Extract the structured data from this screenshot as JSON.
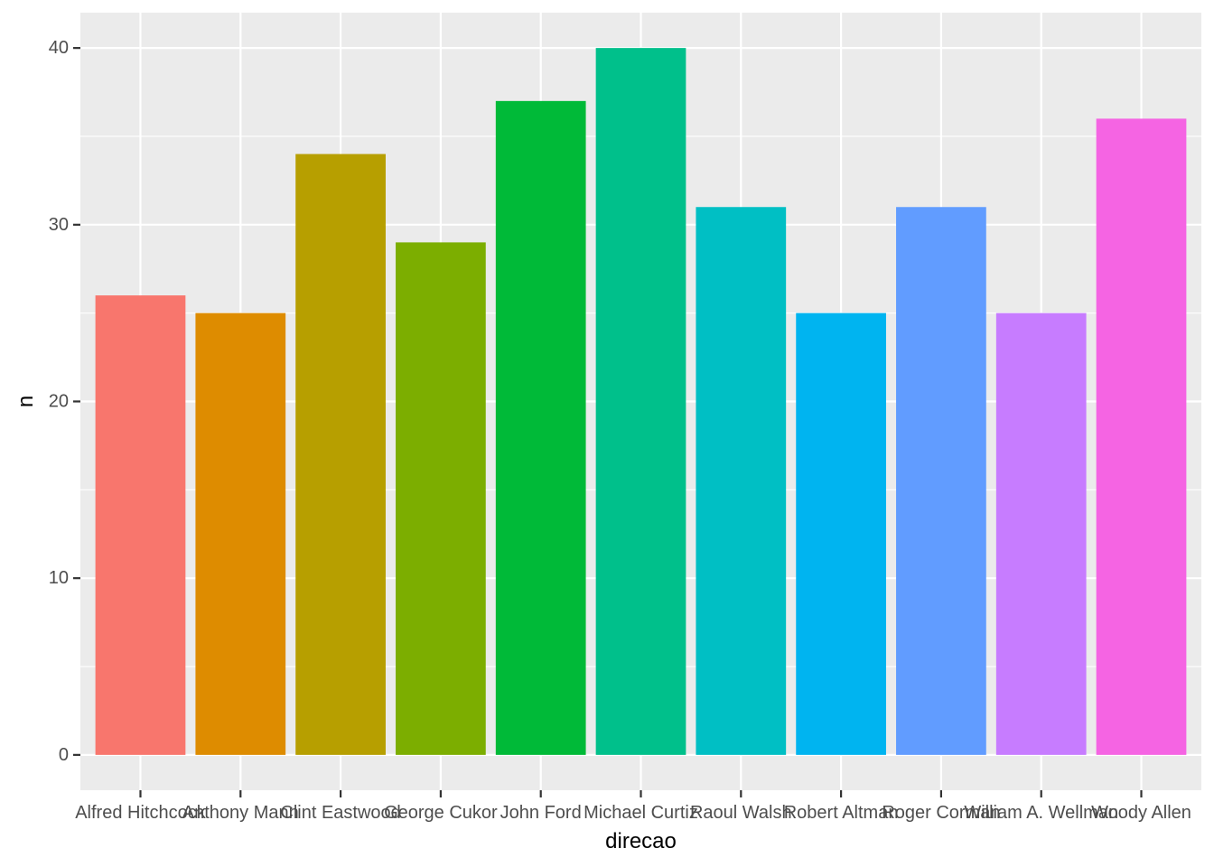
{
  "chart_data": {
    "type": "bar",
    "title": "",
    "xlabel": "direcao",
    "ylabel": "n",
    "categories": [
      "Alfred Hitchcock",
      "Anthony Mann",
      "Clint Eastwood",
      "George Cukor",
      "John Ford",
      "Michael Curtiz",
      "Raoul Walsh",
      "Robert Altman",
      "Roger Corman",
      "William A. Wellman",
      "Woody Allen"
    ],
    "values": [
      26,
      25,
      34,
      29,
      37,
      40,
      31,
      25,
      31,
      25,
      36
    ],
    "colors": [
      "#F8766D",
      "#DE8C00",
      "#B79F00",
      "#7CAE00",
      "#00BA38",
      "#00C08B",
      "#00BFC4",
      "#00B4F0",
      "#619CFF",
      "#C77CFF",
      "#F564E3"
    ],
    "yticks": [
      0,
      10,
      20,
      30,
      40
    ],
    "ylim": [
      -2,
      42
    ],
    "grid": true,
    "legend": "none",
    "panel_background": "#EBEBEB",
    "grid_color": "#FFFFFF"
  }
}
